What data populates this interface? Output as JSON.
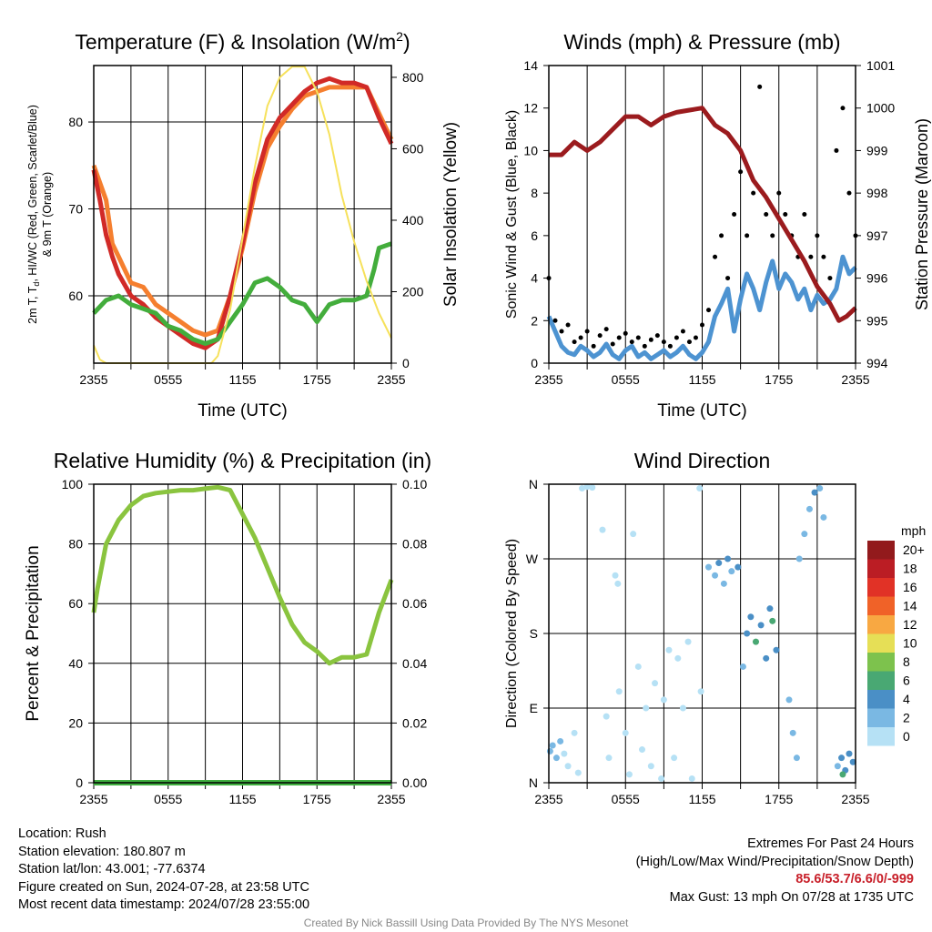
{
  "colors": {
    "temp": "#d12a27",
    "temp9m": "#f57f2f",
    "dewpoint": "#43ad3c",
    "insolation": "#f6e15b",
    "wind": "#4d93d1",
    "gust": "#000000",
    "pressure": "#9b1b1e",
    "rh": "#8ac43f",
    "precip": "#3fae3f",
    "heat_index": "#a31a1e"
  },
  "chart_data": [
    {
      "type": "line",
      "title": "Temperature (F) & Insolation (W/m",
      "title_sup": "2",
      "title_end": ")",
      "xlabel": "Time (UTC)",
      "ylabel_lines": [
        "2m T, T",
        "d",
        ", HI/WC (Red, Green, Scarlet/Blue)",
        "& 9m T (Orange)"
      ],
      "y2label": "Solar Insolation (Yellow)",
      "xticks": [
        "2355",
        "0555",
        "1155",
        "1755",
        "2355"
      ],
      "ylim": [
        52.25,
        86.5
      ],
      "yticks": [
        60,
        70,
        80
      ],
      "y2lim": [
        0,
        833
      ],
      "y2ticks": [
        0,
        200,
        400,
        600,
        800
      ],
      "series": [
        {
          "name": "9m T",
          "color_key": "temp9m",
          "x": [
            0,
            1,
            1.5,
            2,
            3,
            4,
            5,
            6,
            7,
            8,
            9,
            10,
            11,
            12,
            13,
            14,
            15,
            16,
            17,
            18,
            19,
            20,
            21,
            22,
            23,
            24
          ],
          "y": [
            75,
            71,
            66,
            64.5,
            61.5,
            61,
            59,
            58,
            57,
            56,
            55.5,
            56,
            60,
            65.5,
            72,
            77,
            79.5,
            81.5,
            83,
            83.5,
            84,
            84,
            84,
            84,
            81,
            78
          ]
        },
        {
          "name": "2m T",
          "color_key": "temp",
          "x": [
            0,
            0.5,
            1,
            1.5,
            2,
            3,
            4,
            5,
            6,
            7,
            8,
            9,
            10,
            11,
            12,
            13,
            14,
            15,
            16,
            17,
            18,
            19,
            20,
            21,
            22,
            23,
            24
          ],
          "y": [
            74.5,
            71,
            67,
            64.5,
            62.5,
            60,
            59,
            57.5,
            56.5,
            55.5,
            54.5,
            54,
            55,
            60,
            66,
            73,
            78,
            80.5,
            82,
            83.5,
            84.5,
            85,
            84.5,
            84.5,
            84,
            80.5,
            77.5
          ]
        },
        {
          "name": "Td",
          "color_key": "dewpoint",
          "x": [
            0,
            1,
            2,
            3,
            4,
            5,
            6,
            7,
            8,
            9,
            10,
            11,
            12,
            13,
            14,
            15,
            16,
            17,
            18,
            19,
            20,
            21,
            22,
            22.6,
            23,
            24
          ],
          "y": [
            58,
            59.5,
            60,
            59,
            58.5,
            58,
            56.5,
            56,
            55,
            54.5,
            55,
            57,
            59,
            61.5,
            62,
            61,
            59.5,
            59,
            57,
            59,
            59.5,
            59.5,
            60,
            63,
            65.5,
            66
          ]
        },
        {
          "name": "Insolation",
          "color_key": "insolation",
          "axis": "right",
          "x": [
            0,
            0.5,
            1,
            9.5,
            10,
            11,
            12,
            13,
            14,
            15,
            16,
            17,
            18,
            19,
            20,
            21,
            22,
            23,
            24
          ],
          "y": [
            50,
            10,
            0,
            0,
            20,
            150,
            350,
            550,
            720,
            800,
            830,
            830,
            760,
            640,
            470,
            340,
            230,
            140,
            70
          ]
        }
      ]
    },
    {
      "type": "line",
      "title": "Winds (mph) & Pressure (mb)",
      "xlabel": "Time (UTC)",
      "ylabel": "Sonic Wind & Gust (Blue, Black)",
      "y2label": "Station Pressure (Maroon)",
      "xticks": [
        "2355",
        "0555",
        "1155",
        "1755",
        "2355"
      ],
      "ylim": [
        0,
        14
      ],
      "yticks": [
        0,
        2,
        4,
        6,
        8,
        10,
        12,
        14
      ],
      "y2lim": [
        994,
        1001
      ],
      "y2ticks": [
        994,
        995,
        996,
        997,
        998,
        999,
        1000,
        1001
      ],
      "series": [
        {
          "name": "Sonic Wind",
          "color_key": "wind",
          "dx": 0.5,
          "y": [
            2.2,
            1.5,
            0.8,
            0.5,
            0.4,
            0.8,
            0.6,
            0.3,
            0.5,
            0.9,
            0.4,
            0.2,
            0.6,
            0.8,
            0.3,
            0.5,
            0.2,
            0.4,
            0.6,
            0.3,
            0.5,
            0.8,
            0.4,
            0.2,
            0.5,
            1.0,
            2.2,
            2.8,
            3.5,
            1.5,
            3.0,
            4.2,
            3.5,
            2.5,
            3.8,
            4.8,
            3.5,
            4.2,
            3.8,
            3.0,
            3.5,
            2.5,
            3.2,
            2.8,
            3.0,
            3.5,
            5.0,
            4.2,
            4.5
          ]
        },
        {
          "name": "Gust",
          "color_key": "gust",
          "style": "dots",
          "dx": 0.5,
          "y": [
            4,
            2,
            1.5,
            1.8,
            1,
            1.2,
            1.5,
            0.8,
            1.3,
            1.6,
            0.9,
            1.2,
            1.4,
            1,
            1.2,
            0.8,
            1.1,
            1.3,
            1.0,
            0.8,
            1.2,
            1.5,
            1.0,
            1.2,
            1.8,
            2.5,
            5,
            6,
            4,
            7,
            9,
            6,
            8,
            13,
            7,
            6,
            8,
            7,
            6,
            5,
            7,
            5,
            6,
            5,
            4,
            10,
            12,
            8,
            6
          ]
        },
        {
          "name": "Pressure",
          "color_key": "pressure",
          "axis": "right",
          "x": [
            0,
            1,
            2,
            3,
            4,
            5,
            6,
            7,
            8,
            9,
            10,
            11,
            12,
            13,
            14,
            15,
            16,
            17,
            18,
            19,
            20,
            21,
            22,
            22.7,
            23.3,
            24
          ],
          "y": [
            998.9,
            998.9,
            999.2,
            999.0,
            999.2,
            999.5,
            999.8,
            999.8,
            999.6,
            999.8,
            999.9,
            999.95,
            1000.0,
            999.6,
            999.4,
            999.0,
            998.3,
            997.9,
            997.4,
            996.9,
            996.4,
            995.8,
            995.4,
            995.0,
            995.1,
            995.3
          ]
        }
      ]
    },
    {
      "type": "line",
      "title": "Relative Humidity (%) & Precipitation (in)",
      "ylabel": "Percent & Precipitation",
      "xticks": [
        "2355",
        "0555",
        "1155",
        "1755",
        "2355"
      ],
      "ylim": [
        0,
        100
      ],
      "yticks": [
        0,
        20,
        40,
        60,
        80,
        100
      ],
      "y2lim": [
        0,
        0.1
      ],
      "y2ticks": [
        "0.00",
        "0.02",
        "0.04",
        "0.06",
        "0.08",
        "0.10"
      ],
      "series": [
        {
          "name": "RH",
          "color_key": "rh",
          "x": [
            0,
            0.3,
            1,
            2,
            3,
            4,
            5,
            6,
            7,
            8,
            9,
            10,
            11,
            12,
            13,
            14,
            15,
            16,
            17,
            18,
            19,
            20,
            21,
            22,
            23,
            24
          ],
          "y": [
            57,
            65,
            80,
            88,
            93,
            96,
            97,
            97.5,
            98,
            98,
            98.5,
            99,
            98,
            90,
            82,
            72,
            62,
            53,
            47,
            44,
            40,
            42,
            42,
            43,
            57,
            68
          ]
        },
        {
          "name": "Precipitation",
          "color_key": "precip",
          "axis": "right",
          "x": [
            0,
            24
          ],
          "y": [
            0,
            0
          ]
        }
      ]
    },
    {
      "type": "scatter",
      "title": "Wind Direction",
      "ylabel": "Direction (Colored By Speed)",
      "xticks": [
        "2355",
        "0555",
        "1155",
        "1755",
        "2355"
      ],
      "ylim": [
        0,
        360
      ],
      "yticks": [
        "N",
        "E",
        "S",
        "W",
        "N"
      ],
      "legend": {
        "title": "mph",
        "placement": "right",
        "labels": [
          "20+",
          "18",
          "16",
          "14",
          "12",
          "10",
          "8",
          "6",
          "4",
          "2",
          "0"
        ],
        "colors": [
          "#921a1c",
          "#bb1d24",
          "#e13226",
          "#f06228",
          "#f8a842",
          "#e6df56",
          "#7dc24d",
          "#49a873",
          "#4a8fc6",
          "#7ab8e3",
          "#b6e1f5"
        ]
      },
      "points": [
        [
          0.1,
          38,
          2.5
        ],
        [
          0.3,
          45,
          3
        ],
        [
          0.6,
          30,
          2.5
        ],
        [
          0.9,
          50,
          2
        ],
        [
          1.2,
          35,
          1
        ],
        [
          1.5,
          20,
          1
        ],
        [
          2.0,
          60,
          0.5
        ],
        [
          2.3,
          12,
          0.5
        ],
        [
          2.6,
          355,
          0.5
        ],
        [
          3.0,
          357,
          0.3
        ],
        [
          3.4,
          356,
          0.5
        ],
        [
          4.2,
          305,
          0.5
        ],
        [
          4.5,
          80,
          0.5
        ],
        [
          4.7,
          30,
          0.5
        ],
        [
          5.2,
          250,
          0.5
        ],
        [
          5.4,
          240,
          0.4
        ],
        [
          5.5,
          110,
          0.6
        ],
        [
          6.0,
          60,
          0.5
        ],
        [
          6.3,
          10,
          0.3
        ],
        [
          6.6,
          300,
          0.5
        ],
        [
          7.0,
          140,
          0.5
        ],
        [
          7.3,
          40,
          0.4
        ],
        [
          7.6,
          90,
          0.6
        ],
        [
          8.0,
          20,
          0.5
        ],
        [
          8.3,
          120,
          0.5
        ],
        [
          8.8,
          5,
          0.5
        ],
        [
          9.0,
          100,
          0.4
        ],
        [
          9.4,
          160,
          0.6
        ],
        [
          9.8,
          30,
          0.5
        ],
        [
          10.1,
          150,
          0.5
        ],
        [
          10.5,
          90,
          0.3
        ],
        [
          10.9,
          170,
          0.6
        ],
        [
          11.2,
          5,
          0.5
        ],
        [
          11.8,
          355,
          0.5
        ],
        [
          11.9,
          110,
          1
        ],
        [
          12.5,
          260,
          2.5
        ],
        [
          13.0,
          250,
          3
        ],
        [
          13.3,
          265,
          4
        ],
        [
          13.7,
          240,
          3.5
        ],
        [
          14.0,
          270,
          4
        ],
        [
          14.3,
          255,
          3
        ],
        [
          14.8,
          260,
          4
        ],
        [
          15.2,
          140,
          3
        ],
        [
          15.5,
          180,
          4.5
        ],
        [
          15.8,
          200,
          5
        ],
        [
          16.2,
          170,
          6
        ],
        [
          16.6,
          190,
          5
        ],
        [
          17.0,
          150,
          4.5
        ],
        [
          17.3,
          210,
          4
        ],
        [
          17.8,
          160,
          4
        ],
        [
          17.5,
          195,
          6
        ],
        [
          18.8,
          100,
          3
        ],
        [
          19.1,
          60,
          3.5
        ],
        [
          19.4,
          30,
          3
        ],
        [
          19.6,
          270,
          3.5
        ],
        [
          20.0,
          300,
          3
        ],
        [
          20.4,
          330,
          3
        ],
        [
          20.8,
          350,
          4
        ],
        [
          21.2,
          355,
          3.5
        ],
        [
          21.5,
          320,
          3
        ],
        [
          22.6,
          20,
          3.5
        ],
        [
          22.9,
          30,
          4
        ],
        [
          23.2,
          15,
          4.5
        ],
        [
          23.5,
          35,
          5
        ],
        [
          23.8,
          25,
          4
        ],
        [
          23.0,
          10,
          6
        ]
      ]
    }
  ],
  "footer": {
    "location": "Location: Rush",
    "elevation": "Station elevation: 180.807 m",
    "latlon": "Station lat/lon: 43.001; -77.6374",
    "created": "Figure created on Sun, 2024-07-28, at 23:58 UTC",
    "recent": "Most recent data timestamp: 2024/07/28 23:55:00",
    "extremes_title": "Extremes For Past 24 Hours",
    "extremes_sub": "(High/Low/Max Wind/Precipitation/Snow Depth)",
    "extremes_values": "85.6/53.7/6.6/0/-999",
    "max_gust": "Max Gust: 13 mph On 07/28 at 1735 UTC",
    "credit": "Created By Nick Bassill Using Data Provided By The NYS Mesonet"
  }
}
